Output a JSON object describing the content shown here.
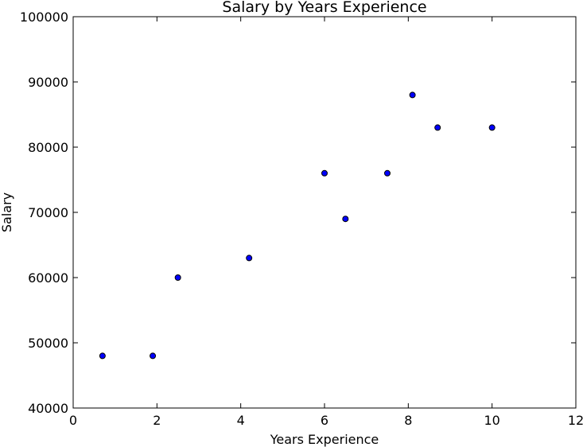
{
  "chart_data": {
    "type": "scatter",
    "title": "Salary by Years Experience",
    "xlabel": "Years Experience",
    "ylabel": "Salary",
    "xlim": [
      0,
      12
    ],
    "ylim": [
      40000,
      100000
    ],
    "xticks": [
      0,
      2,
      4,
      6,
      8,
      10,
      12
    ],
    "yticks": [
      40000,
      50000,
      60000,
      70000,
      80000,
      90000,
      100000
    ],
    "grid": false,
    "marker_color": "#0000ff",
    "marker_edge_color": "#000000",
    "points": [
      {
        "x": 0.7,
        "y": 48000
      },
      {
        "x": 1.9,
        "y": 48000
      },
      {
        "x": 2.5,
        "y": 60000
      },
      {
        "x": 4.2,
        "y": 63000
      },
      {
        "x": 6.0,
        "y": 76000
      },
      {
        "x": 6.5,
        "y": 69000
      },
      {
        "x": 7.5,
        "y": 76000
      },
      {
        "x": 8.1,
        "y": 88000
      },
      {
        "x": 8.7,
        "y": 83000
      },
      {
        "x": 10.0,
        "y": 83000
      }
    ]
  }
}
